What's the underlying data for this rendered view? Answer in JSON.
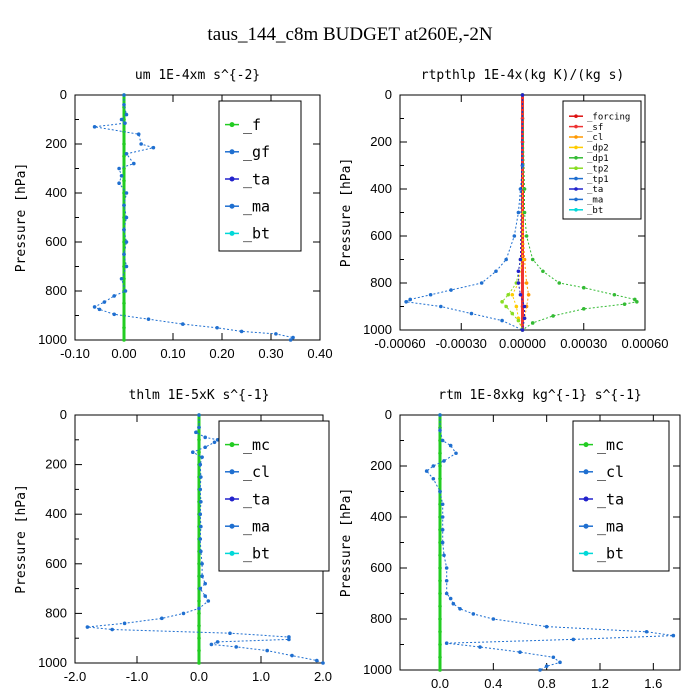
{
  "figure": {
    "title": "taus_144_c8m  BUDGET at260E,-2N"
  },
  "chart_data": [
    {
      "id": "um",
      "type": "line",
      "title": "um   1E-4xm s^{-2}",
      "ylabel": "Pressure [hPa]",
      "xlim": [
        -0.1,
        0.4
      ],
      "xticks": [
        "-0.10",
        "0.00",
        "0.10",
        "0.20",
        "0.30",
        "0.40"
      ],
      "ylim": [
        1000,
        0
      ],
      "yticks": [
        "0",
        "200",
        "400",
        "600",
        "800",
        "1000"
      ],
      "legend": {
        "placement": "top-right",
        "size": "large"
      },
      "series": [
        {
          "name": "_f",
          "color": "#22cc22",
          "pressure": [
            0,
            50,
            100,
            150,
            200,
            250,
            300,
            350,
            400,
            450,
            500,
            550,
            600,
            650,
            700,
            750,
            800,
            850,
            900,
            950,
            1000
          ],
          "values": [
            0,
            0,
            0,
            0,
            0,
            0,
            0,
            0,
            0,
            0,
            0,
            0,
            0,
            0,
            0,
            0,
            0,
            0,
            0,
            0,
            0
          ]
        },
        {
          "name": "_gf",
          "color": "#1f6fd0",
          "pressure": [
            0,
            40,
            80,
            100,
            115,
            130,
            160,
            200,
            215,
            240,
            280,
            300,
            330,
            360,
            400,
            450,
            500,
            550,
            600,
            650,
            700,
            750,
            800,
            820,
            845,
            865,
            875,
            895,
            915,
            935,
            950,
            965,
            975,
            990,
            1000
          ],
          "values": [
            0,
            0,
            0.005,
            -0.005,
            0.002,
            -0.06,
            0.03,
            0.035,
            0.06,
            0.005,
            0.02,
            -0.01,
            -0.005,
            -0.01,
            0.005,
            0,
            0.005,
            0,
            0.005,
            0,
            0.005,
            -0.005,
            0.003,
            -0.02,
            -0.04,
            -0.06,
            -0.05,
            -0.02,
            0.05,
            0.12,
            0.19,
            0.24,
            0.31,
            0.345,
            0.34
          ]
        },
        {
          "name": "_ta",
          "color": "#2222cc",
          "pressure": [],
          "values": []
        },
        {
          "name": "_ma",
          "color": "#1f6fd0",
          "pressure": [],
          "values": []
        },
        {
          "name": "_bt",
          "color": "#00d8d8",
          "pressure": [],
          "values": []
        }
      ]
    },
    {
      "id": "rtpthlp",
      "type": "line",
      "title": "rtpthlp   1E-4x(kg K)/(kg s)",
      "ylabel": "Pressure [hPa]",
      "xlim": [
        -0.0006,
        0.0006
      ],
      "xticks": [
        "-0.00060",
        "-0.00030",
        "0.00000",
        "0.00030",
        "0.00060"
      ],
      "ylim": [
        1000,
        0
      ],
      "yticks": [
        "0",
        "200",
        "400",
        "600",
        "800",
        "1000"
      ],
      "legend": {
        "placement": "top-right",
        "size": "small"
      },
      "series": [
        {
          "name": "_forcing",
          "color": "#dd1111",
          "pressure": [
            0,
            100,
            200,
            300,
            400,
            500,
            600,
            700,
            800,
            900,
            1000
          ],
          "values": [
            0,
            0,
            0,
            0,
            0,
            0,
            0,
            0,
            0,
            0,
            0
          ]
        },
        {
          "name": "_sf",
          "color": "#ee3333",
          "pressure": [
            0,
            1000
          ],
          "values": [
            0,
            0
          ]
        },
        {
          "name": "_cl",
          "color": "#ff9900",
          "pressure": [
            0,
            500,
            700,
            800,
            850,
            900,
            950,
            1000
          ],
          "values": [
            0,
            0,
            1e-05,
            2e-05,
            3e-05,
            2e-05,
            1e-05,
            0
          ]
        },
        {
          "name": "_dp2",
          "color": "#ffcc00",
          "pressure": [
            0,
            700,
            800,
            850,
            900,
            950,
            1000
          ],
          "values": [
            0,
            0,
            -2e-05,
            -5e-05,
            -3e-05,
            -2e-05,
            0
          ]
        },
        {
          "name": "_dp1",
          "color": "#33bb33",
          "pressure": [
            0,
            400,
            500,
            600,
            700,
            750,
            800,
            820,
            850,
            870,
            880,
            890,
            910,
            940,
            970,
            1000
          ],
          "values": [
            0,
            1e-05,
            1e-05,
            2e-05,
            5e-05,
            0.0001,
            0.00018,
            0.0003,
            0.00045,
            0.00055,
            0.00056,
            0.0005,
            0.0003,
            0.00015,
            5e-05,
            0
          ]
        },
        {
          "name": "_tp2",
          "color": "#88dd22",
          "pressure": [
            0,
            700,
            800,
            850,
            880,
            900,
            930,
            960,
            1000
          ],
          "values": [
            0,
            -1e-05,
            -3e-05,
            -7e-05,
            -0.0001,
            -8e-05,
            -5e-05,
            -2e-05,
            0
          ]
        },
        {
          "name": "_tp1",
          "color": "#1f6fd0",
          "pressure": [
            0,
            300,
            400,
            500,
            600,
            700,
            750,
            800,
            830,
            850,
            870,
            880,
            900,
            930,
            960,
            1000
          ],
          "values": [
            0,
            0,
            -1e-05,
            -2e-05,
            -4e-05,
            -8e-05,
            -0.00013,
            -0.0002,
            -0.00035,
            -0.00045,
            -0.00055,
            -0.00057,
            -0.0004,
            -0.00025,
            -0.0001,
            0
          ]
        },
        {
          "name": "_ta",
          "color": "#2222cc",
          "pressure": [
            0,
            700,
            750,
            800,
            850,
            900,
            950,
            1000
          ],
          "values": [
            0,
            -1e-05,
            -2e-05,
            -2e-05,
            -1e-05,
            1e-05,
            1e-05,
            0
          ]
        },
        {
          "name": "_ma",
          "color": "#1f6fd0",
          "pressure": [],
          "values": []
        },
        {
          "name": "_bt",
          "color": "#00d8d8",
          "pressure": [],
          "values": []
        }
      ]
    },
    {
      "id": "thlm",
      "type": "line",
      "title": "thlm   1E-5xK s^{-1}",
      "ylabel": "Pressure [hPa]",
      "xlim": [
        -2.0,
        2.0
      ],
      "xticks": [
        "-2.0",
        "-1.0",
        "0.0",
        "1.0",
        "2.0"
      ],
      "ylim": [
        1000,
        0
      ],
      "yticks": [
        "0",
        "200",
        "400",
        "600",
        "800",
        "1000"
      ],
      "legend": {
        "placement": "top-right",
        "size": "large"
      },
      "series": [
        {
          "name": "_mc",
          "color": "#22cc22",
          "pressure": [
            0,
            50,
            100,
            150,
            200,
            250,
            300,
            350,
            400,
            450,
            500,
            550,
            600,
            650,
            700,
            750,
            800,
            850,
            900,
            950,
            1000
          ],
          "values": [
            0,
            0,
            0,
            0,
            0,
            0,
            0,
            0,
            0,
            0,
            0,
            0,
            0,
            0,
            0,
            0,
            0,
            0,
            0,
            0,
            0
          ]
        },
        {
          "name": "_cl",
          "color": "#1f6fd0",
          "pressure": [
            0,
            50,
            70,
            90,
            100,
            110,
            130,
            150,
            170,
            200,
            250,
            300,
            350,
            400,
            450,
            500,
            550,
            600,
            650,
            680,
            700,
            730,
            750,
            780,
            800,
            820,
            840,
            855,
            865,
            880,
            895,
            905,
            915,
            925,
            935,
            950,
            970,
            990,
            1000
          ],
          "values": [
            0,
            0,
            -0.05,
            0.1,
            0.3,
            0.25,
            0.1,
            -0.1,
            0.05,
            0.02,
            0.03,
            0.02,
            0.03,
            0.02,
            0.03,
            0.02,
            0.03,
            0.05,
            0.05,
            0.1,
            0.02,
            0.1,
            0.15,
            0,
            -0.25,
            -0.6,
            -1.2,
            -1.8,
            -1.4,
            0.5,
            1.45,
            1.45,
            0.3,
            0.2,
            0.6,
            1.1,
            1.5,
            1.9,
            2.0
          ]
        },
        {
          "name": "_ta",
          "color": "#2222cc",
          "pressure": [],
          "values": []
        },
        {
          "name": "_ma",
          "color": "#1f6fd0",
          "pressure": [],
          "values": []
        },
        {
          "name": "_bt",
          "color": "#00d8d8",
          "pressure": [],
          "values": []
        }
      ]
    },
    {
      "id": "rtm",
      "type": "line",
      "title": "rtm   1E-8xkg kg^{-1} s^{-1}",
      "ylabel": "Pressure [hPa]",
      "xlim": [
        -0.3,
        1.8
      ],
      "xticks": [
        "0.0",
        "0.4",
        "0.8",
        "1.2",
        "1.6"
      ],
      "xtickvalues": [
        0.0,
        0.4,
        0.8,
        1.2,
        1.6
      ],
      "ylim": [
        1000,
        0
      ],
      "yticks": [
        "0",
        "200",
        "400",
        "600",
        "800",
        "1000"
      ],
      "legend": {
        "placement": "top-right",
        "size": "large"
      },
      "series": [
        {
          "name": "_mc",
          "color": "#22cc22",
          "pressure": [
            0,
            50,
            100,
            150,
            200,
            250,
            300,
            350,
            400,
            450,
            500,
            550,
            600,
            650,
            700,
            750,
            800,
            850,
            900,
            950,
            1000
          ],
          "values": [
            0,
            0,
            0,
            0,
            0,
            0,
            0,
            0,
            0,
            0,
            0,
            0,
            0,
            0,
            0,
            0,
            0,
            0,
            0,
            0,
            0
          ]
        },
        {
          "name": "_cl",
          "color": "#1f6fd0",
          "pressure": [
            0,
            60,
            100,
            120,
            150,
            180,
            200,
            220,
            250,
            300,
            350,
            400,
            450,
            500,
            550,
            600,
            650,
            700,
            720,
            740,
            760,
            780,
            800,
            830,
            850,
            865,
            880,
            895,
            910,
            930,
            950,
            970,
            985,
            1000
          ],
          "values": [
            0,
            0,
            0.02,
            0.08,
            0.12,
            0.03,
            -0.05,
            -0.1,
            -0.05,
            0,
            0.02,
            0.02,
            0.02,
            0.02,
            0.03,
            0.05,
            0.05,
            0.05,
            0.08,
            0.1,
            0.15,
            0.25,
            0.4,
            0.8,
            1.55,
            1.75,
            1.0,
            0.05,
            0.3,
            0.6,
            0.85,
            0.9,
            0.8,
            0.75
          ]
        },
        {
          "name": "_ta",
          "color": "#2222cc",
          "pressure": [],
          "values": []
        },
        {
          "name": "_ma",
          "color": "#1f6fd0",
          "pressure": [],
          "values": []
        },
        {
          "name": "_bt",
          "color": "#00d8d8",
          "pressure": [],
          "values": []
        }
      ]
    }
  ]
}
